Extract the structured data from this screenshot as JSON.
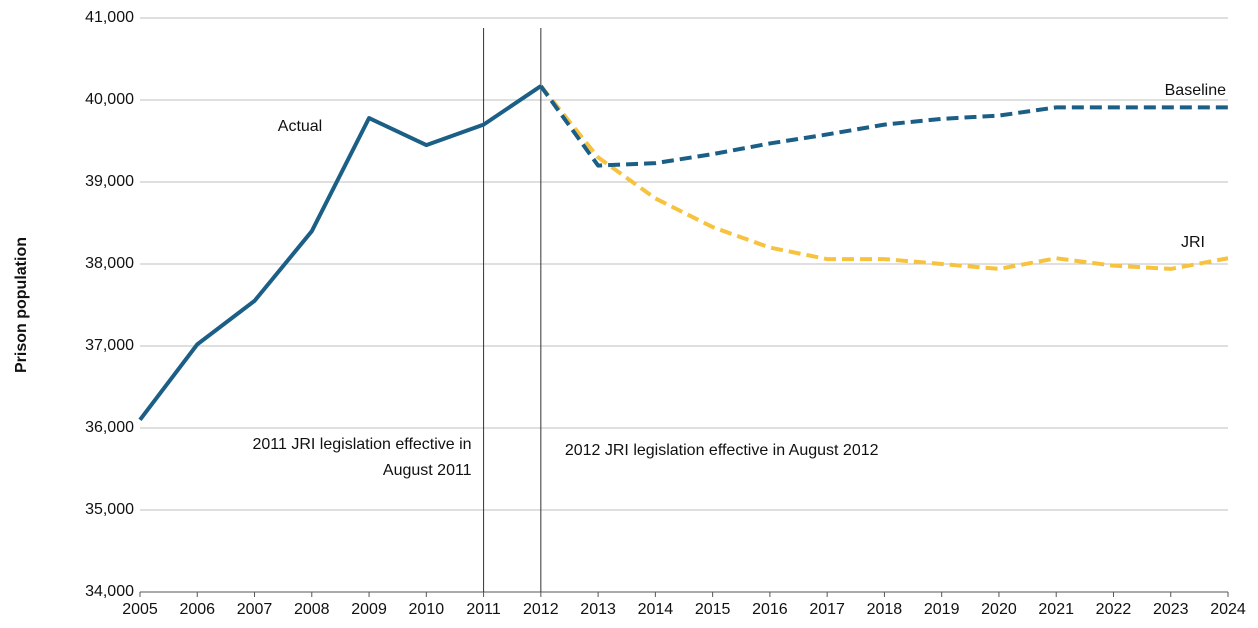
{
  "chart_data": {
    "type": "line",
    "y_label": "Prison population",
    "x": [
      2005,
      2006,
      2007,
      2008,
      2009,
      2010,
      2011,
      2012,
      2013,
      2014,
      2015,
      2016,
      2017,
      2018,
      2019,
      2020,
      2021,
      2022,
      2023,
      2024
    ],
    "series": [
      {
        "name": "Actual",
        "color": "#1b5f86",
        "dashed": false,
        "values": [
          36100,
          37020,
          37550,
          38400,
          39780,
          39450,
          39700,
          40170,
          null,
          null,
          null,
          null,
          null,
          null,
          null,
          null,
          null,
          null,
          null,
          null
        ]
      },
      {
        "name": "Baseline",
        "color": "#1b5f86",
        "dashed": true,
        "values": [
          null,
          null,
          null,
          null,
          null,
          null,
          null,
          40170,
          39200,
          39230,
          39340,
          39470,
          39580,
          39700,
          39770,
          39810,
          39910,
          39910,
          39910,
          39910
        ]
      },
      {
        "name": "JRI",
        "color": "#f7c23e",
        "dashed": true,
        "values": [
          null,
          null,
          null,
          null,
          null,
          null,
          null,
          40170,
          39300,
          38800,
          38450,
          38200,
          38060,
          38060,
          38000,
          37940,
          38070,
          37980,
          37940,
          38070
        ]
      }
    ],
    "reference_lines": [
      2011,
      2012
    ],
    "annotations": [
      {
        "lines": [
          "2011 JRI legislation effective in",
          "August 2011"
        ]
      },
      {
        "lines": [
          "2012 JRI legislation effective in August 2012"
        ]
      }
    ],
    "xlim": [
      2005,
      2024
    ],
    "xticks": [
      2005,
      2006,
      2007,
      2008,
      2009,
      2010,
      2011,
      2012,
      2013,
      2014,
      2015,
      2016,
      2017,
      2018,
      2019,
      2020,
      2021,
      2022,
      2023,
      2024
    ],
    "ylim": [
      34000,
      41000
    ],
    "yticks": [
      {
        "value": 34000,
        "label": "34,000"
      },
      {
        "value": 35000,
        "label": "35,000"
      },
      {
        "value": 36000,
        "label": "36,000"
      },
      {
        "value": 37000,
        "label": "37,000"
      },
      {
        "value": 38000,
        "label": "38,000"
      },
      {
        "value": 39000,
        "label": "39,000"
      },
      {
        "value": 40000,
        "label": "40,000"
      },
      {
        "value": 41000,
        "label": "41,000"
      }
    ],
    "grid": true
  }
}
